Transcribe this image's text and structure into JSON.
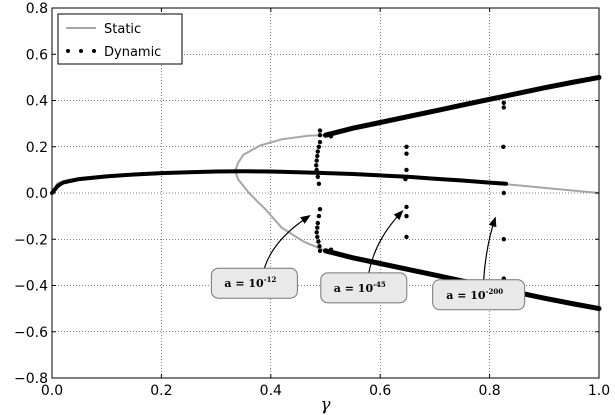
{
  "chart_data": {
    "type": "line",
    "title": "",
    "xlabel": "γ",
    "ylabel": "",
    "xlim": [
      0.0,
      1.0
    ],
    "ylim": [
      -0.8,
      0.8
    ],
    "x_ticks": [
      "0.0",
      "0.2",
      "0.4",
      "0.6",
      "0.8",
      "1.0"
    ],
    "y_ticks": [
      "0.8",
      "0.6",
      "0.4",
      "0.2",
      "0.0",
      "−0.2",
      "−0.4",
      "−0.6",
      "−0.8"
    ],
    "x_tick_values": [
      0.0,
      0.2,
      0.4,
      0.6,
      0.8,
      1.0
    ],
    "y_tick_values": [
      0.8,
      0.6,
      0.4,
      0.2,
      0.0,
      -0.2,
      -0.4,
      -0.6,
      -0.8
    ],
    "grid": true,
    "legend_position": "top-left",
    "series": [
      {
        "name": "Static",
        "style": "line",
        "color": "#a6a6a6",
        "branches": [
          {
            "points": [
              [
                0.0,
                0.0
              ],
              [
                0.01,
                0.042
              ],
              [
                0.03,
                0.058
              ],
              [
                0.05,
                0.065
              ],
              [
                0.1,
                0.076
              ],
              [
                0.15,
                0.083
              ],
              [
                0.2,
                0.088
              ],
              [
                0.25,
                0.092
              ],
              [
                0.3,
                0.094
              ],
              [
                0.34,
                0.095
              ],
              [
                0.4,
                0.093
              ],
              [
                0.45,
                0.09
              ],
              [
                0.5,
                0.086
              ],
              [
                0.6,
                0.075
              ],
              [
                0.7,
                0.062
              ],
              [
                0.8,
                0.045
              ],
              [
                0.9,
                0.022
              ],
              [
                1.0,
                0.0
              ]
            ]
          },
          {
            "points": [
              [
                0.335,
                0.095
              ],
              [
                0.34,
                0.13
              ],
              [
                0.35,
                0.165
              ],
              [
                0.38,
                0.205
              ],
              [
                0.42,
                0.232
              ],
              [
                0.47,
                0.248
              ],
              [
                0.5,
                0.25
              ]
            ]
          },
          {
            "points": [
              [
                0.335,
                0.095
              ],
              [
                0.34,
                0.06
              ],
              [
                0.36,
                0.0
              ],
              [
                0.39,
                -0.07
              ],
              [
                0.42,
                -0.15
              ],
              [
                0.46,
                -0.21
              ],
              [
                0.5,
                -0.25
              ]
            ]
          }
        ]
      },
      {
        "name": "Dynamic",
        "style": "dots",
        "color": "#000000",
        "branches": [
          {
            "points": [
              [
                0.0,
                0.0
              ],
              [
                0.01,
                0.03
              ],
              [
                0.02,
                0.045
              ],
              [
                0.05,
                0.06
              ],
              [
                0.1,
                0.072
              ],
              [
                0.15,
                0.08
              ],
              [
                0.2,
                0.086
              ],
              [
                0.25,
                0.09
              ],
              [
                0.3,
                0.093
              ],
              [
                0.35,
                0.094
              ],
              [
                0.4,
                0.093
              ],
              [
                0.45,
                0.09
              ],
              [
                0.49,
                0.087
              ],
              [
                0.55,
                0.082
              ],
              [
                0.6,
                0.076
              ],
              [
                0.65,
                0.07
              ],
              [
                0.7,
                0.062
              ],
              [
                0.75,
                0.054
              ],
              [
                0.8,
                0.045
              ],
              [
                0.83,
                0.04
              ]
            ]
          },
          {
            "points": [
              [
                0.5,
                0.25
              ],
              [
                0.55,
                0.28
              ],
              [
                0.6,
                0.305
              ],
              [
                0.65,
                0.33
              ],
              [
                0.7,
                0.355
              ],
              [
                0.75,
                0.38
              ],
              [
                0.8,
                0.405
              ],
              [
                0.85,
                0.43
              ],
              [
                0.9,
                0.455
              ],
              [
                0.95,
                0.478
              ],
              [
                1.0,
                0.5
              ]
            ]
          },
          {
            "points": [
              [
                0.5,
                -0.25
              ],
              [
                0.55,
                -0.28
              ],
              [
                0.6,
                -0.305
              ],
              [
                0.65,
                -0.33
              ],
              [
                0.7,
                -0.355
              ],
              [
                0.75,
                -0.38
              ],
              [
                0.8,
                -0.405
              ],
              [
                0.85,
                -0.43
              ],
              [
                0.9,
                -0.455
              ],
              [
                0.95,
                -0.478
              ],
              [
                1.0,
                -0.5
              ]
            ]
          }
        ],
        "scatter": [
          [
            0.49,
            0.27
          ],
          [
            0.49,
            0.25
          ],
          [
            0.49,
            0.22
          ],
          [
            0.488,
            0.2
          ],
          [
            0.486,
            0.18
          ],
          [
            0.485,
            0.16
          ],
          [
            0.484,
            0.14
          ],
          [
            0.483,
            0.12
          ],
          [
            0.484,
            0.1
          ],
          [
            0.486,
            0.07
          ],
          [
            0.488,
            0.04
          ],
          [
            0.49,
            -0.07
          ],
          [
            0.488,
            -0.1
          ],
          [
            0.486,
            -0.13
          ],
          [
            0.485,
            -0.15
          ],
          [
            0.484,
            -0.17
          ],
          [
            0.485,
            -0.19
          ],
          [
            0.487,
            -0.21
          ],
          [
            0.489,
            -0.23
          ],
          [
            0.49,
            -0.25
          ],
          [
            0.505,
            0.255
          ],
          [
            0.51,
            0.245
          ],
          [
            0.505,
            -0.255
          ],
          [
            0.51,
            -0.245
          ],
          [
            0.648,
            0.2
          ],
          [
            0.648,
            0.17
          ],
          [
            0.648,
            0.1
          ],
          [
            0.646,
            0.06
          ],
          [
            0.648,
            -0.06
          ],
          [
            0.648,
            -0.1
          ],
          [
            0.648,
            -0.19
          ],
          [
            0.825,
            0.2
          ],
          [
            0.826,
            0.0
          ],
          [
            0.826,
            -0.2
          ],
          [
            0.826,
            -0.39
          ],
          [
            0.826,
            0.39
          ],
          [
            0.826,
            0.37
          ],
          [
            0.826,
            -0.37
          ]
        ]
      }
    ],
    "annotations": [
      {
        "base": "a = 10",
        "exponent": "-12",
        "box_at": [
          0.37,
          -0.39
        ],
        "arrow_to": [
          0.47,
          -0.1
        ]
      },
      {
        "base": "a = 10",
        "exponent": "-45",
        "box_at": [
          0.57,
          -0.41
        ],
        "arrow_to": [
          0.64,
          -0.08
        ]
      },
      {
        "base": "a = 10",
        "exponent": "-200",
        "box_at": [
          0.78,
          -0.44
        ],
        "arrow_to": [
          0.81,
          -0.11
        ]
      }
    ]
  }
}
